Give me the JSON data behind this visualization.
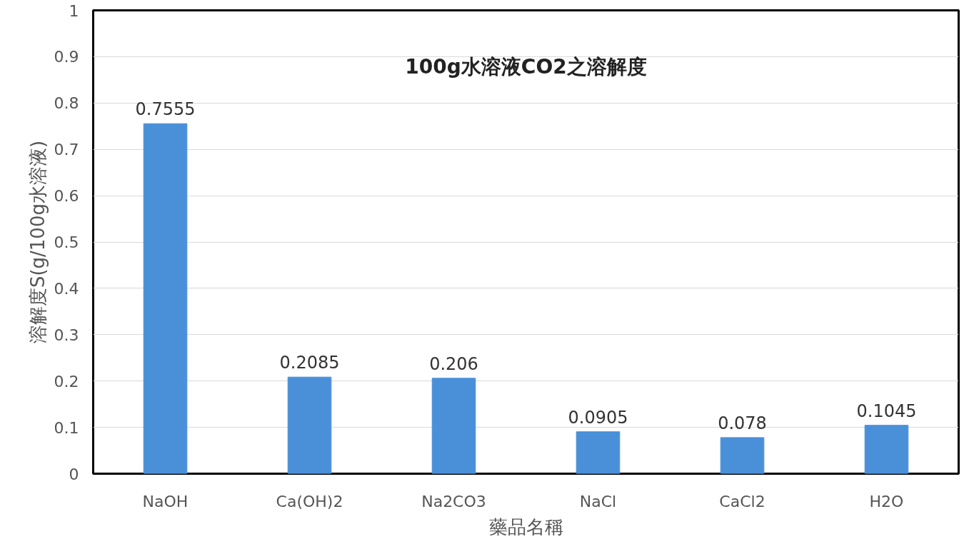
{
  "chart_data": {
    "type": "bar",
    "title": "100g水溶液CO2之溶解度",
    "xlabel": "藥品名稱",
    "ylabel": "溶解度S(g/100g水溶液)",
    "categories": [
      "NaOH",
      "Ca(OH)2",
      "Na2CO3",
      "NaCl",
      "CaCl2",
      "H2O"
    ],
    "values": [
      0.7555,
      0.2085,
      0.206,
      0.0905,
      0.078,
      0.1045
    ],
    "color": "#4a90d9",
    "ylim": [
      0,
      1
    ],
    "yticks": [
      0,
      0.1,
      0.2,
      0.3,
      0.4,
      0.5,
      0.6,
      0.7,
      0.8,
      0.9,
      1
    ],
    "grid": "y",
    "data_labels": true
  }
}
